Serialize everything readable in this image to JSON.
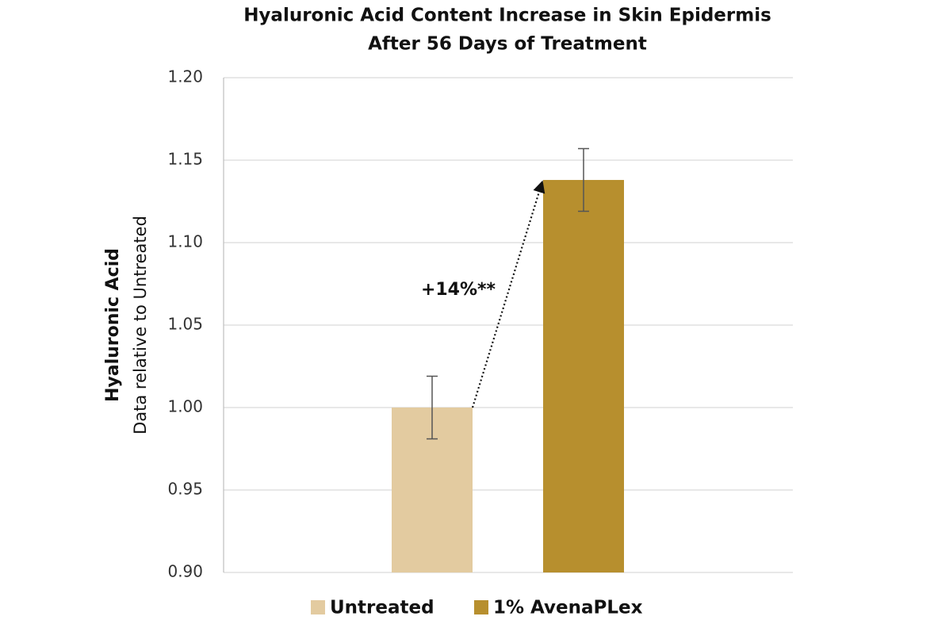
{
  "chart_data": {
    "type": "bar",
    "title": [
      "Hyaluronic Acid Content Increase in Skin Epidermis",
      "After 56 Days of Treatment"
    ],
    "ylabel": [
      "Hyaluronic Acid",
      "Data relative to Untreated"
    ],
    "series": [
      {
        "name": "Untreated",
        "color": "#e3cba0",
        "values": [
          1.0
        ],
        "errors": [
          0.019
        ]
      },
      {
        "name": "1% AvenaPLex",
        "color": "#b78f2e",
        "values": [
          1.138
        ],
        "errors": [
          0.019
        ]
      }
    ],
    "annotation": "+14%**",
    "ylim": [
      0.9,
      1.2
    ],
    "yticks": [
      {
        "value": 0.9,
        "label": "0.90"
      },
      0.95,
      {
        "value": 1.0,
        "label": "1.00"
      },
      1.05,
      {
        "value": 1.1,
        "label": "1.10"
      },
      1.15,
      {
        "value": 1.2,
        "label": "1.20"
      }
    ],
    "grid": true,
    "legend": "bottom"
  }
}
